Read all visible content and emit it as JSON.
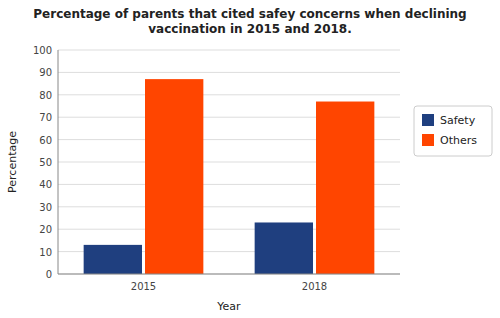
{
  "chart_data": {
    "type": "bar",
    "title": "Percentage of parents that cited safey concerns when declining\nvaccination in 2015 and 2018.",
    "xlabel": "Year",
    "ylabel": "Percentage",
    "categories": [
      "2015",
      "2018"
    ],
    "series": [
      {
        "name": "Safety",
        "color": "#1f3f7f",
        "values": [
          13,
          23
        ]
      },
      {
        "name": "Others",
        "color": "#ff4500",
        "values": [
          87,
          77
        ]
      }
    ],
    "ylim": [
      0,
      100
    ],
    "yticks": [
      0,
      10,
      20,
      30,
      40,
      50,
      60,
      70,
      80,
      90,
      100
    ],
    "grid": true,
    "legend": "right"
  }
}
